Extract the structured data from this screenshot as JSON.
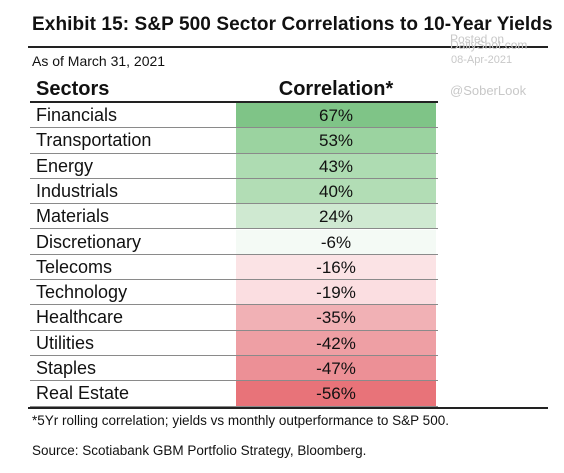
{
  "header": {
    "title": "Exhibit 15: S&P 500 Sector Correlations to 10-Year Yields",
    "as_of": "As of March 31, 2021"
  },
  "watermark": {
    "posted_on": "Posted on",
    "site": "DailyShot.com",
    "date": "08-Apr-2021",
    "handle": "@SoberLook"
  },
  "table": {
    "col_sector": "Sectors",
    "col_correlation": "Correlation*"
  },
  "chart_data": {
    "type": "table",
    "title": "Exhibit 15: S&P 500 Sector Correlations to 10-Year Yields",
    "subtitle": "As of March 31, 2021",
    "columns": [
      "Sectors",
      "Correlation*"
    ],
    "categories": [
      "Financials",
      "Transportation",
      "Energy",
      "Industrials",
      "Materials",
      "Discretionary",
      "Telecoms",
      "Technology",
      "Healthcare",
      "Utilities",
      "Staples",
      "Real Estate"
    ],
    "values": [
      67,
      53,
      43,
      40,
      24,
      -6,
      -16,
      -19,
      -35,
      -42,
      -47,
      -56
    ],
    "labels": [
      "67%",
      "53%",
      "43%",
      "40%",
      "24%",
      "-6%",
      "-16%",
      "-19%",
      "-35%",
      "-42%",
      "-47%",
      "-56%"
    ],
    "colors": [
      "#7fc487",
      "#9bd3a0",
      "#aedcb2",
      "#b2ddb5",
      "#cfe9d1",
      "#f4faf5",
      "#fbe3e5",
      "#fbdee1",
      "#f1b1b5",
      "#ee9fa4",
      "#ec9096",
      "#e87379"
    ]
  },
  "footer": {
    "footnote": "*5Yr rolling correlation; yields vs monthly outperformance to S&P 500.",
    "source": "Source: Scotiabank GBM Portfolio Strategy, Bloomberg."
  }
}
